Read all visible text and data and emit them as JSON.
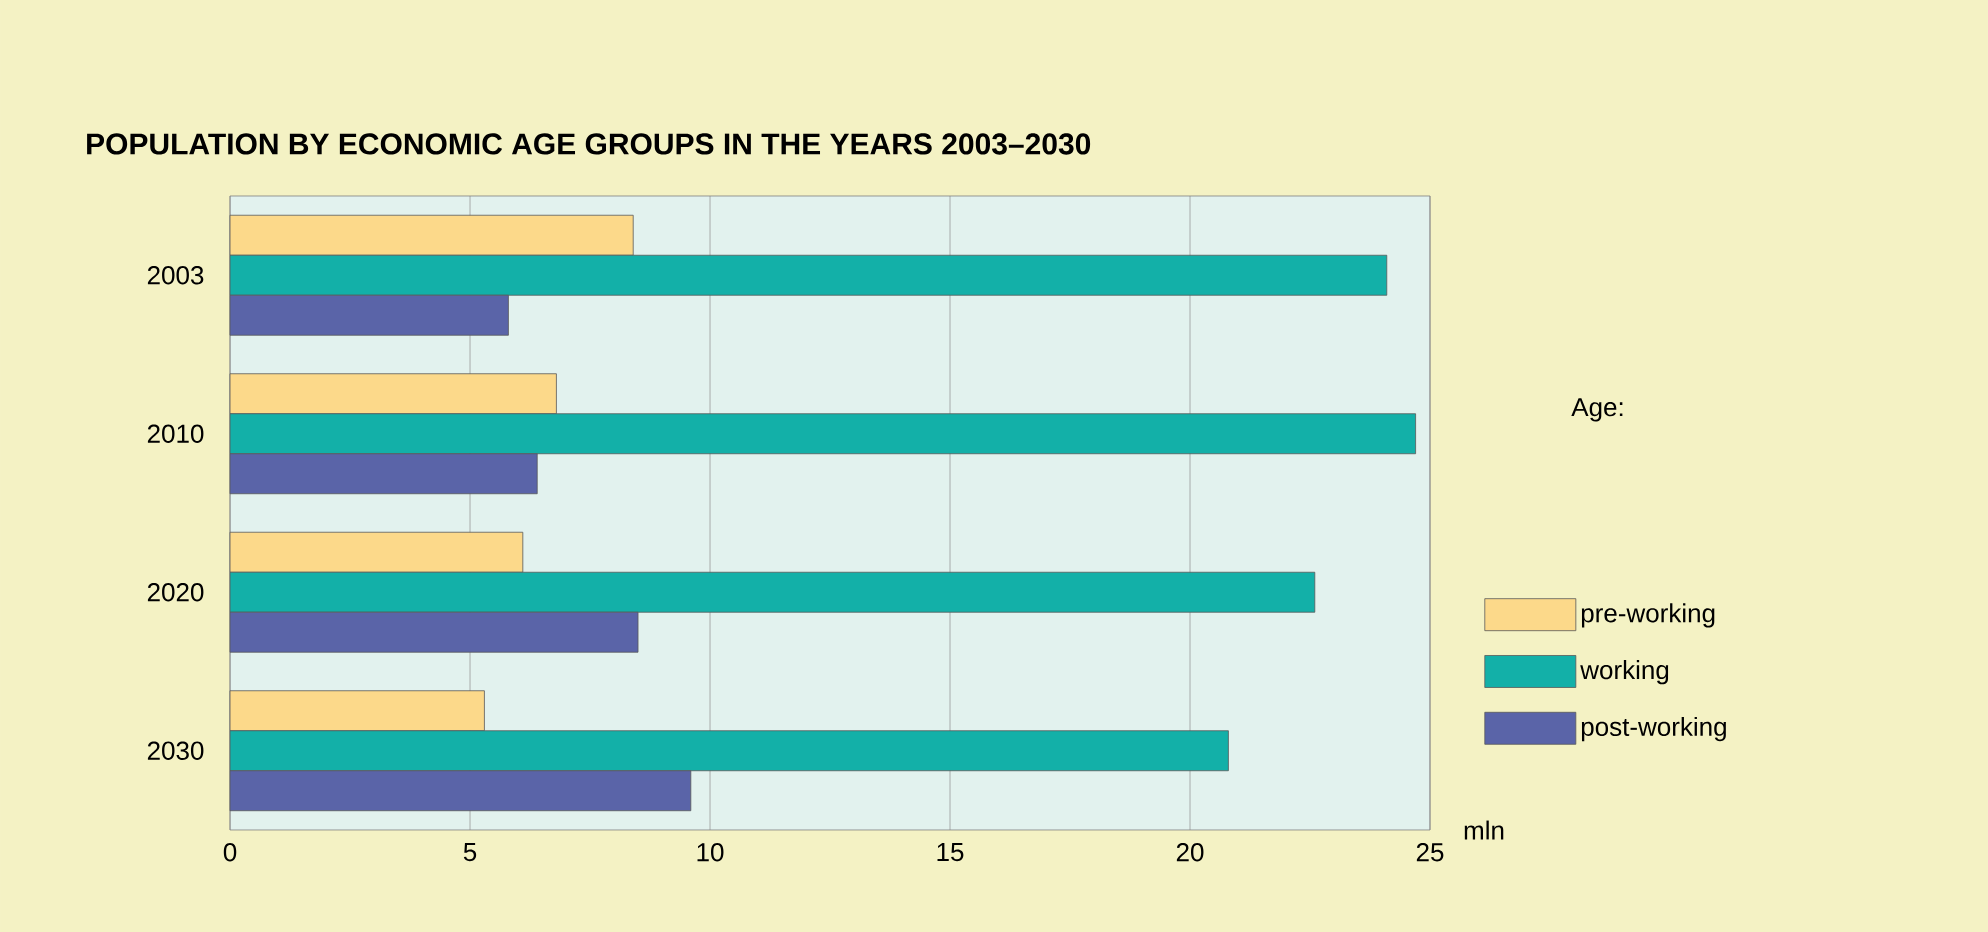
{
  "chart_data": {
    "type": "bar",
    "orientation": "horizontal",
    "title": "POPULATION BY ECONOMIC AGE GROUPS IN THE YEARS 2003–2030",
    "categories": [
      "2003",
      "2010",
      "2020",
      "2030"
    ],
    "series": [
      {
        "name": "pre-working",
        "color": "#fcd98a",
        "values": [
          8.4,
          6.8,
          6.1,
          5.3
        ]
      },
      {
        "name": "working",
        "color": "#13b0a8",
        "values": [
          24.1,
          24.7,
          22.6,
          20.8
        ]
      },
      {
        "name": "post-working",
        "color": "#5a64a8",
        "values": [
          5.8,
          6.4,
          8.5,
          9.6
        ]
      }
    ],
    "xlabel": "mln",
    "legend_title": "Age:",
    "xlim": [
      0,
      25
    ],
    "xticks": [
      0,
      5,
      10,
      15,
      20,
      25
    ],
    "grid": "x",
    "legend": "right"
  }
}
